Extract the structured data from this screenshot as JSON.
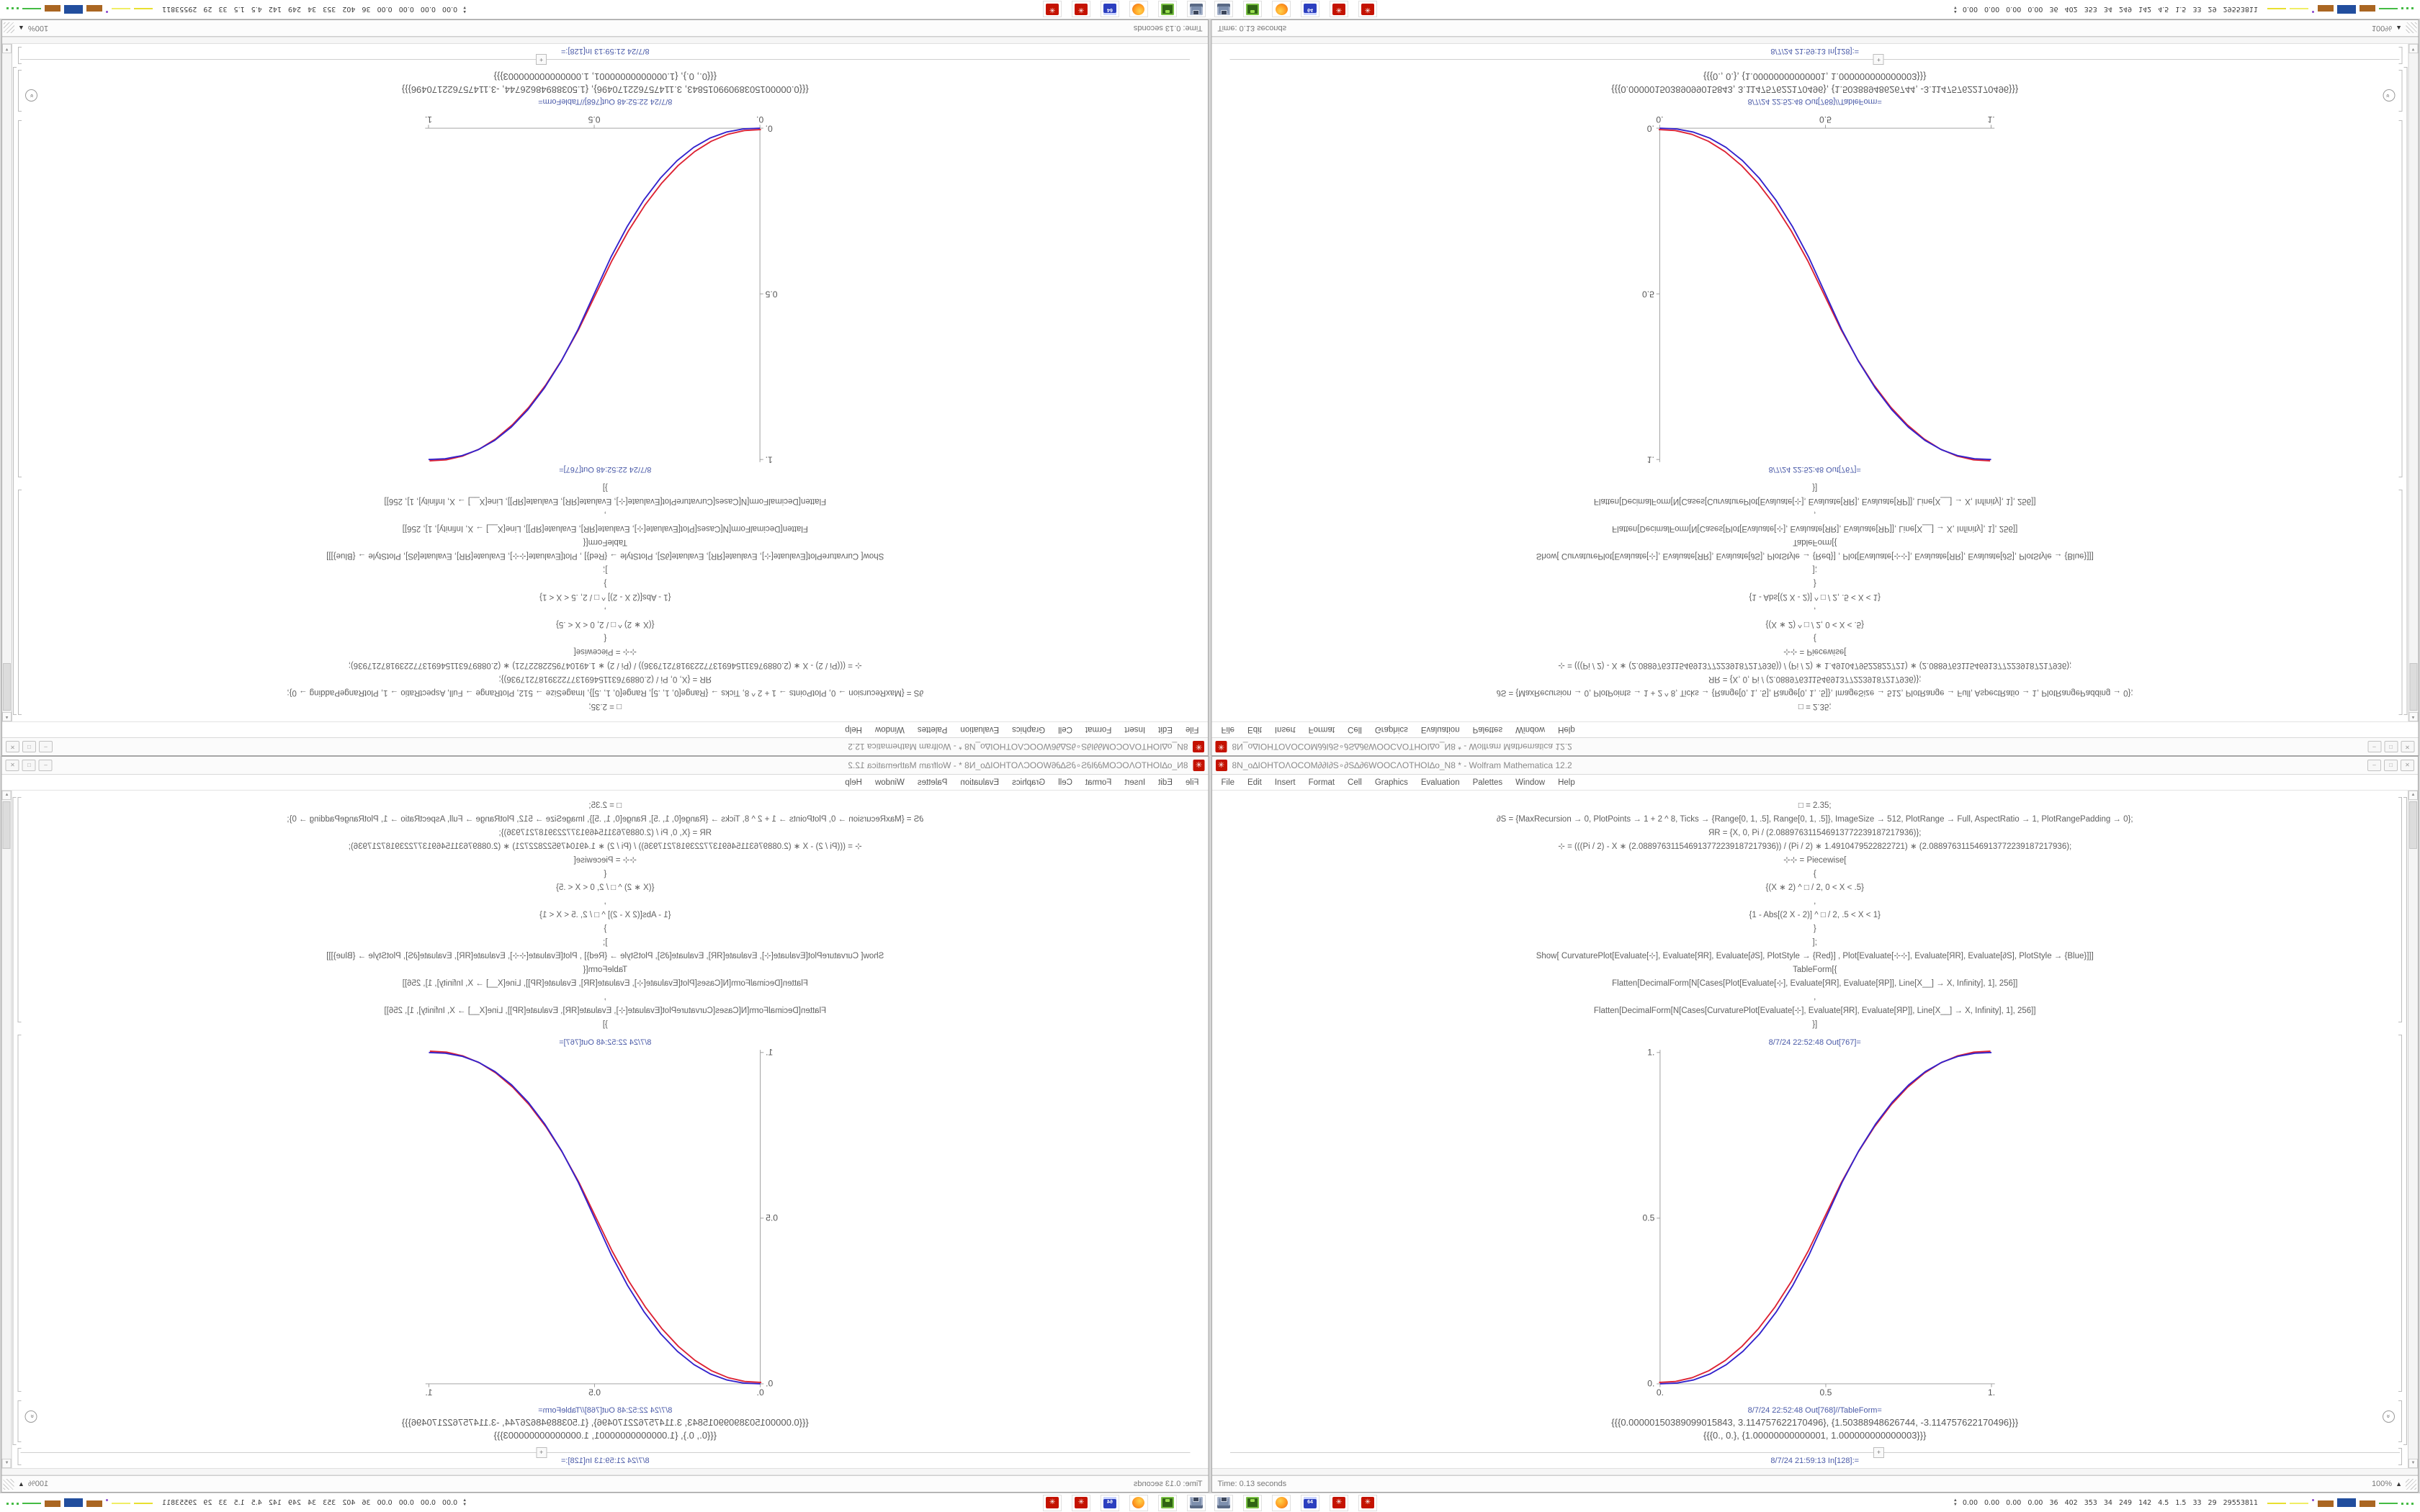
{
  "app": {
    "title": "8N_o∆IOHTOΛOCOM∂∂I∂S∘∂S∆∂6WOOCΛOTHOI∆o_N8 * - Wolfram Mathematica 12.2",
    "menu": [
      "File",
      "Edit",
      "Insert",
      "Format",
      "Cell",
      "Graphics",
      "Evaluation",
      "Palettes",
      "Window",
      "Help"
    ]
  },
  "window_buttons": {
    "minimize": "–",
    "maximize": "□",
    "close": "✕"
  },
  "notebook": {
    "code_lines": [
      "□ = 2.35;",
      "∂S = {MaxRecursion → 0, PlotPoints → 1 + 2 ^ 8, Ticks → {Range[0, 1, .5], Range[0, 1, .5]}, ImageSize → 512, PlotRange → Full, AspectRatio → 1, PlotRangePadding → 0};",
      "ЯR = {X, 0, Pi / (2.088976311546913772239187217936)};",
      "⊹ = (((Pi / 2) - X ∗ (2.088976311546913772239187217936)) / (Pi / 2) ∗ 1.4910479522822721) ∗ (2.088976311546913772239187217936);",
      "⊹⊹ = Piecewise[",
      "{",
      "{(X ∗ 2) ^ □ / 2, 0 < X < .5}",
      ",",
      "{1 - Abs[(2 X - 2)] ^ □ / 2, .5 < X < 1}",
      "}",
      "];",
      "Show[   CurvaturePlot[Evaluate[⊹], Evaluate[ЯR], Evaluate[∂S], PlotStyle → {Red}]   ,   Plot[Evaluate[⊹⊹], Evaluate[ЯR], Evaluate[∂S], PlotStyle → {Blue}]]]",
      "TableForm[{",
      "Flatten[DecimalForm[N[Cases[Plot[Evaluate[⊹], Evaluate[ЯR], Evaluate[ЯP]], Line[X__] → X, Infinity], 1], 256]]",
      ",",
      "Flatten[DecimalForm[N[Cases[CurvaturePlot[Evaluate[⊹], Evaluate[ЯR], Evaluate[ЯP]], Line[X__] → X, Infinity], 1], 256]]",
      "}]"
    ],
    "out_plot_label": "8/7/24 22:52:48 Out[767]=",
    "out_table_label": "8/7/24 22:52:48 Out[768]//TableForm=",
    "table_rows": [
      "{{{0.00000150389099015843, 3.114757622170496}, {1.50388948626744, -3.114757622170496}}}",
      "{{{0., 0.}, {1.00000000000001, 1.000000000000003}}}"
    ],
    "insert_plus": "+",
    "next_in_label": "8/7/24 21:59:13 In[128]:=",
    "status_time": "Time: 0.13 seconds",
    "zoom_level": "100%",
    "zoom_triangle": "▲",
    "expander_glyph": "»"
  },
  "scrollbar": {
    "up": "▲",
    "down": "▼"
  },
  "chart_data": {
    "type": "line",
    "title": "",
    "xlabel": "",
    "ylabel": "",
    "x_range": [
      0,
      1
    ],
    "y_range": [
      0,
      1
    ],
    "xticks": [
      "0.",
      "0.5",
      "1."
    ],
    "yticks": [
      "0.",
      "0.5",
      "1."
    ],
    "grid": false,
    "legend_position": "none",
    "series": [
      {
        "name": "CurvaturePlot (Red)",
        "color": "#dd2233",
        "offset": [
          -1.5,
          -2
        ],
        "x": [
          0,
          0.05,
          0.1,
          0.15,
          0.2,
          0.25,
          0.3,
          0.35,
          0.4,
          0.45,
          0.5,
          0.55,
          0.6,
          0.65,
          0.7,
          0.75,
          0.8,
          0.85,
          0.9,
          0.95,
          1
        ],
        "y": [
          0,
          0.0031,
          0.0145,
          0.0354,
          0.0666,
          0.1088,
          0.1625,
          0.228,
          0.306,
          0.3966,
          0.5,
          0.6034,
          0.694,
          0.772,
          0.8375,
          0.8912,
          0.9334,
          0.9646,
          0.9855,
          0.9969,
          1
        ]
      },
      {
        "name": "Plot Piecewise (Blue)",
        "color": "#3322cc",
        "offset": [
          0,
          0
        ],
        "x": [
          0,
          0.05,
          0.1,
          0.15,
          0.2,
          0.25,
          0.3,
          0.35,
          0.4,
          0.45,
          0.5,
          0.55,
          0.6,
          0.65,
          0.7,
          0.75,
          0.8,
          0.85,
          0.9,
          0.95,
          1
        ],
        "y": [
          0,
          0.0022,
          0.0114,
          0.0295,
          0.058,
          0.098,
          0.1505,
          0.2163,
          0.2959,
          0.3903,
          0.5,
          0.6097,
          0.7041,
          0.7837,
          0.8495,
          0.902,
          0.942,
          0.9705,
          0.9886,
          0.9978,
          1
        ]
      }
    ]
  },
  "taskbar": {
    "monitor_values": [
      "0.00",
      "0.00",
      "0.00",
      "0.00",
      "36",
      "402",
      "353",
      "34",
      "249",
      "142",
      "4.5",
      "1.5",
      "33",
      "29",
      "29553811"
    ],
    "mini_charts": [
      {
        "shape": "line",
        "color": "#e8e030"
      },
      {
        "shape": "line",
        "color": "#f0ee66"
      },
      {
        "shape": "dot",
        "color": "#8844cc"
      },
      {
        "shape": "block",
        "color": "#aa6622"
      },
      {
        "shape": "bigblock",
        "color": "#224e9e"
      },
      {
        "shape": "block",
        "color": "#aa6622"
      },
      {
        "shape": "line",
        "color": "#44bb44"
      },
      {
        "shape": "dots",
        "color": "#44bb44"
      }
    ],
    "icons": [
      {
        "class": "icon-screenshot",
        "name": "screenshot-tool-icon",
        "glyph": ""
      },
      {
        "class": "icon-terminal",
        "name": "terminal-app-icon",
        "glyph": ""
      },
      {
        "class": "icon-firefox",
        "name": "firefox-icon",
        "glyph": ""
      },
      {
        "class": "icon-save64",
        "name": "save-64-icon",
        "glyph": "64"
      },
      {
        "class": "icon-mathematica",
        "name": "mathematica-icon",
        "glyph": "✳"
      },
      {
        "class": "icon-mathematica",
        "name": "mathematica-icon",
        "glyph": "✳"
      }
    ]
  }
}
